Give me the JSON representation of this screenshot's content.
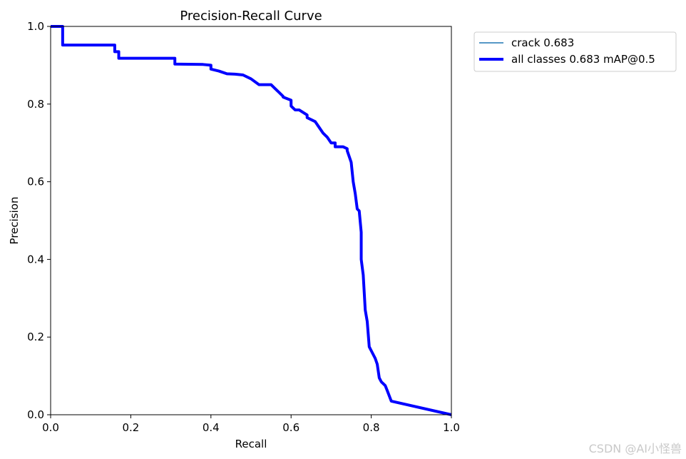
{
  "chart_data": {
    "type": "line",
    "title": "Precision-Recall Curve",
    "xlabel": "Recall",
    "ylabel": "Precision",
    "xlim": [
      0,
      1
    ],
    "ylim": [
      0,
      1
    ],
    "xticks": [
      "0.0",
      "0.2",
      "0.4",
      "0.6",
      "0.8",
      "1.0"
    ],
    "yticks": [
      "0.0",
      "0.2",
      "0.4",
      "0.6",
      "0.8",
      "1.0"
    ],
    "grid": false,
    "legend_position": "outside-top-right",
    "series": [
      {
        "name": "crack 0.683",
        "color": "#1f77b4",
        "line": "thin",
        "x": [
          0,
          0.03,
          0.03,
          0.16,
          0.16,
          0.17,
          0.17,
          0.31,
          0.31,
          0.38,
          0.4,
          0.4,
          0.42,
          0.44,
          0.46,
          0.48,
          0.5,
          0.52,
          0.55,
          0.56,
          0.57,
          0.58,
          0.58,
          0.6,
          0.6,
          0.61,
          0.62,
          0.64,
          0.64,
          0.66,
          0.67,
          0.68,
          0.69,
          0.7,
          0.71,
          0.71,
          0.73,
          0.74,
          0.74,
          0.75,
          0.755,
          0.76,
          0.765,
          0.77,
          0.775,
          0.775,
          0.78,
          0.785,
          0.79,
          0.795,
          0.8,
          0.81,
          0.815,
          0.82,
          0.825,
          0.835,
          0.84,
          0.85,
          1.0
        ],
        "y": [
          1.0,
          1.0,
          0.952,
          0.952,
          0.935,
          0.935,
          0.918,
          0.918,
          0.903,
          0.902,
          0.9,
          0.89,
          0.885,
          0.878,
          0.877,
          0.875,
          0.865,
          0.85,
          0.85,
          0.84,
          0.83,
          0.82,
          0.818,
          0.81,
          0.795,
          0.785,
          0.785,
          0.772,
          0.765,
          0.755,
          0.74,
          0.725,
          0.715,
          0.7,
          0.7,
          0.69,
          0.69,
          0.685,
          0.68,
          0.65,
          0.6,
          0.57,
          0.53,
          0.525,
          0.47,
          0.4,
          0.36,
          0.27,
          0.24,
          0.175,
          0.165,
          0.145,
          0.13,
          0.095,
          0.085,
          0.075,
          0.062,
          0.035,
          0.0
        ]
      },
      {
        "name": "all classes 0.683 mAP@0.5",
        "color": "#0000ff",
        "line": "thick",
        "x": [
          0,
          0.03,
          0.03,
          0.16,
          0.16,
          0.17,
          0.17,
          0.31,
          0.31,
          0.38,
          0.4,
          0.4,
          0.42,
          0.44,
          0.46,
          0.48,
          0.5,
          0.52,
          0.55,
          0.56,
          0.57,
          0.58,
          0.58,
          0.6,
          0.6,
          0.61,
          0.62,
          0.64,
          0.64,
          0.66,
          0.67,
          0.68,
          0.69,
          0.7,
          0.71,
          0.71,
          0.73,
          0.74,
          0.74,
          0.75,
          0.755,
          0.76,
          0.765,
          0.77,
          0.775,
          0.775,
          0.78,
          0.785,
          0.79,
          0.795,
          0.8,
          0.81,
          0.815,
          0.82,
          0.825,
          0.835,
          0.84,
          0.85,
          1.0
        ],
        "y": [
          1.0,
          1.0,
          0.952,
          0.952,
          0.935,
          0.935,
          0.918,
          0.918,
          0.903,
          0.902,
          0.9,
          0.89,
          0.885,
          0.878,
          0.877,
          0.875,
          0.865,
          0.85,
          0.85,
          0.84,
          0.83,
          0.82,
          0.818,
          0.81,
          0.795,
          0.785,
          0.785,
          0.772,
          0.765,
          0.755,
          0.74,
          0.725,
          0.715,
          0.7,
          0.7,
          0.69,
          0.69,
          0.685,
          0.68,
          0.65,
          0.6,
          0.57,
          0.53,
          0.525,
          0.47,
          0.4,
          0.36,
          0.27,
          0.24,
          0.175,
          0.165,
          0.145,
          0.13,
          0.095,
          0.085,
          0.075,
          0.062,
          0.035,
          0.0
        ]
      }
    ]
  },
  "watermark": "CSDN @AI小怪兽"
}
